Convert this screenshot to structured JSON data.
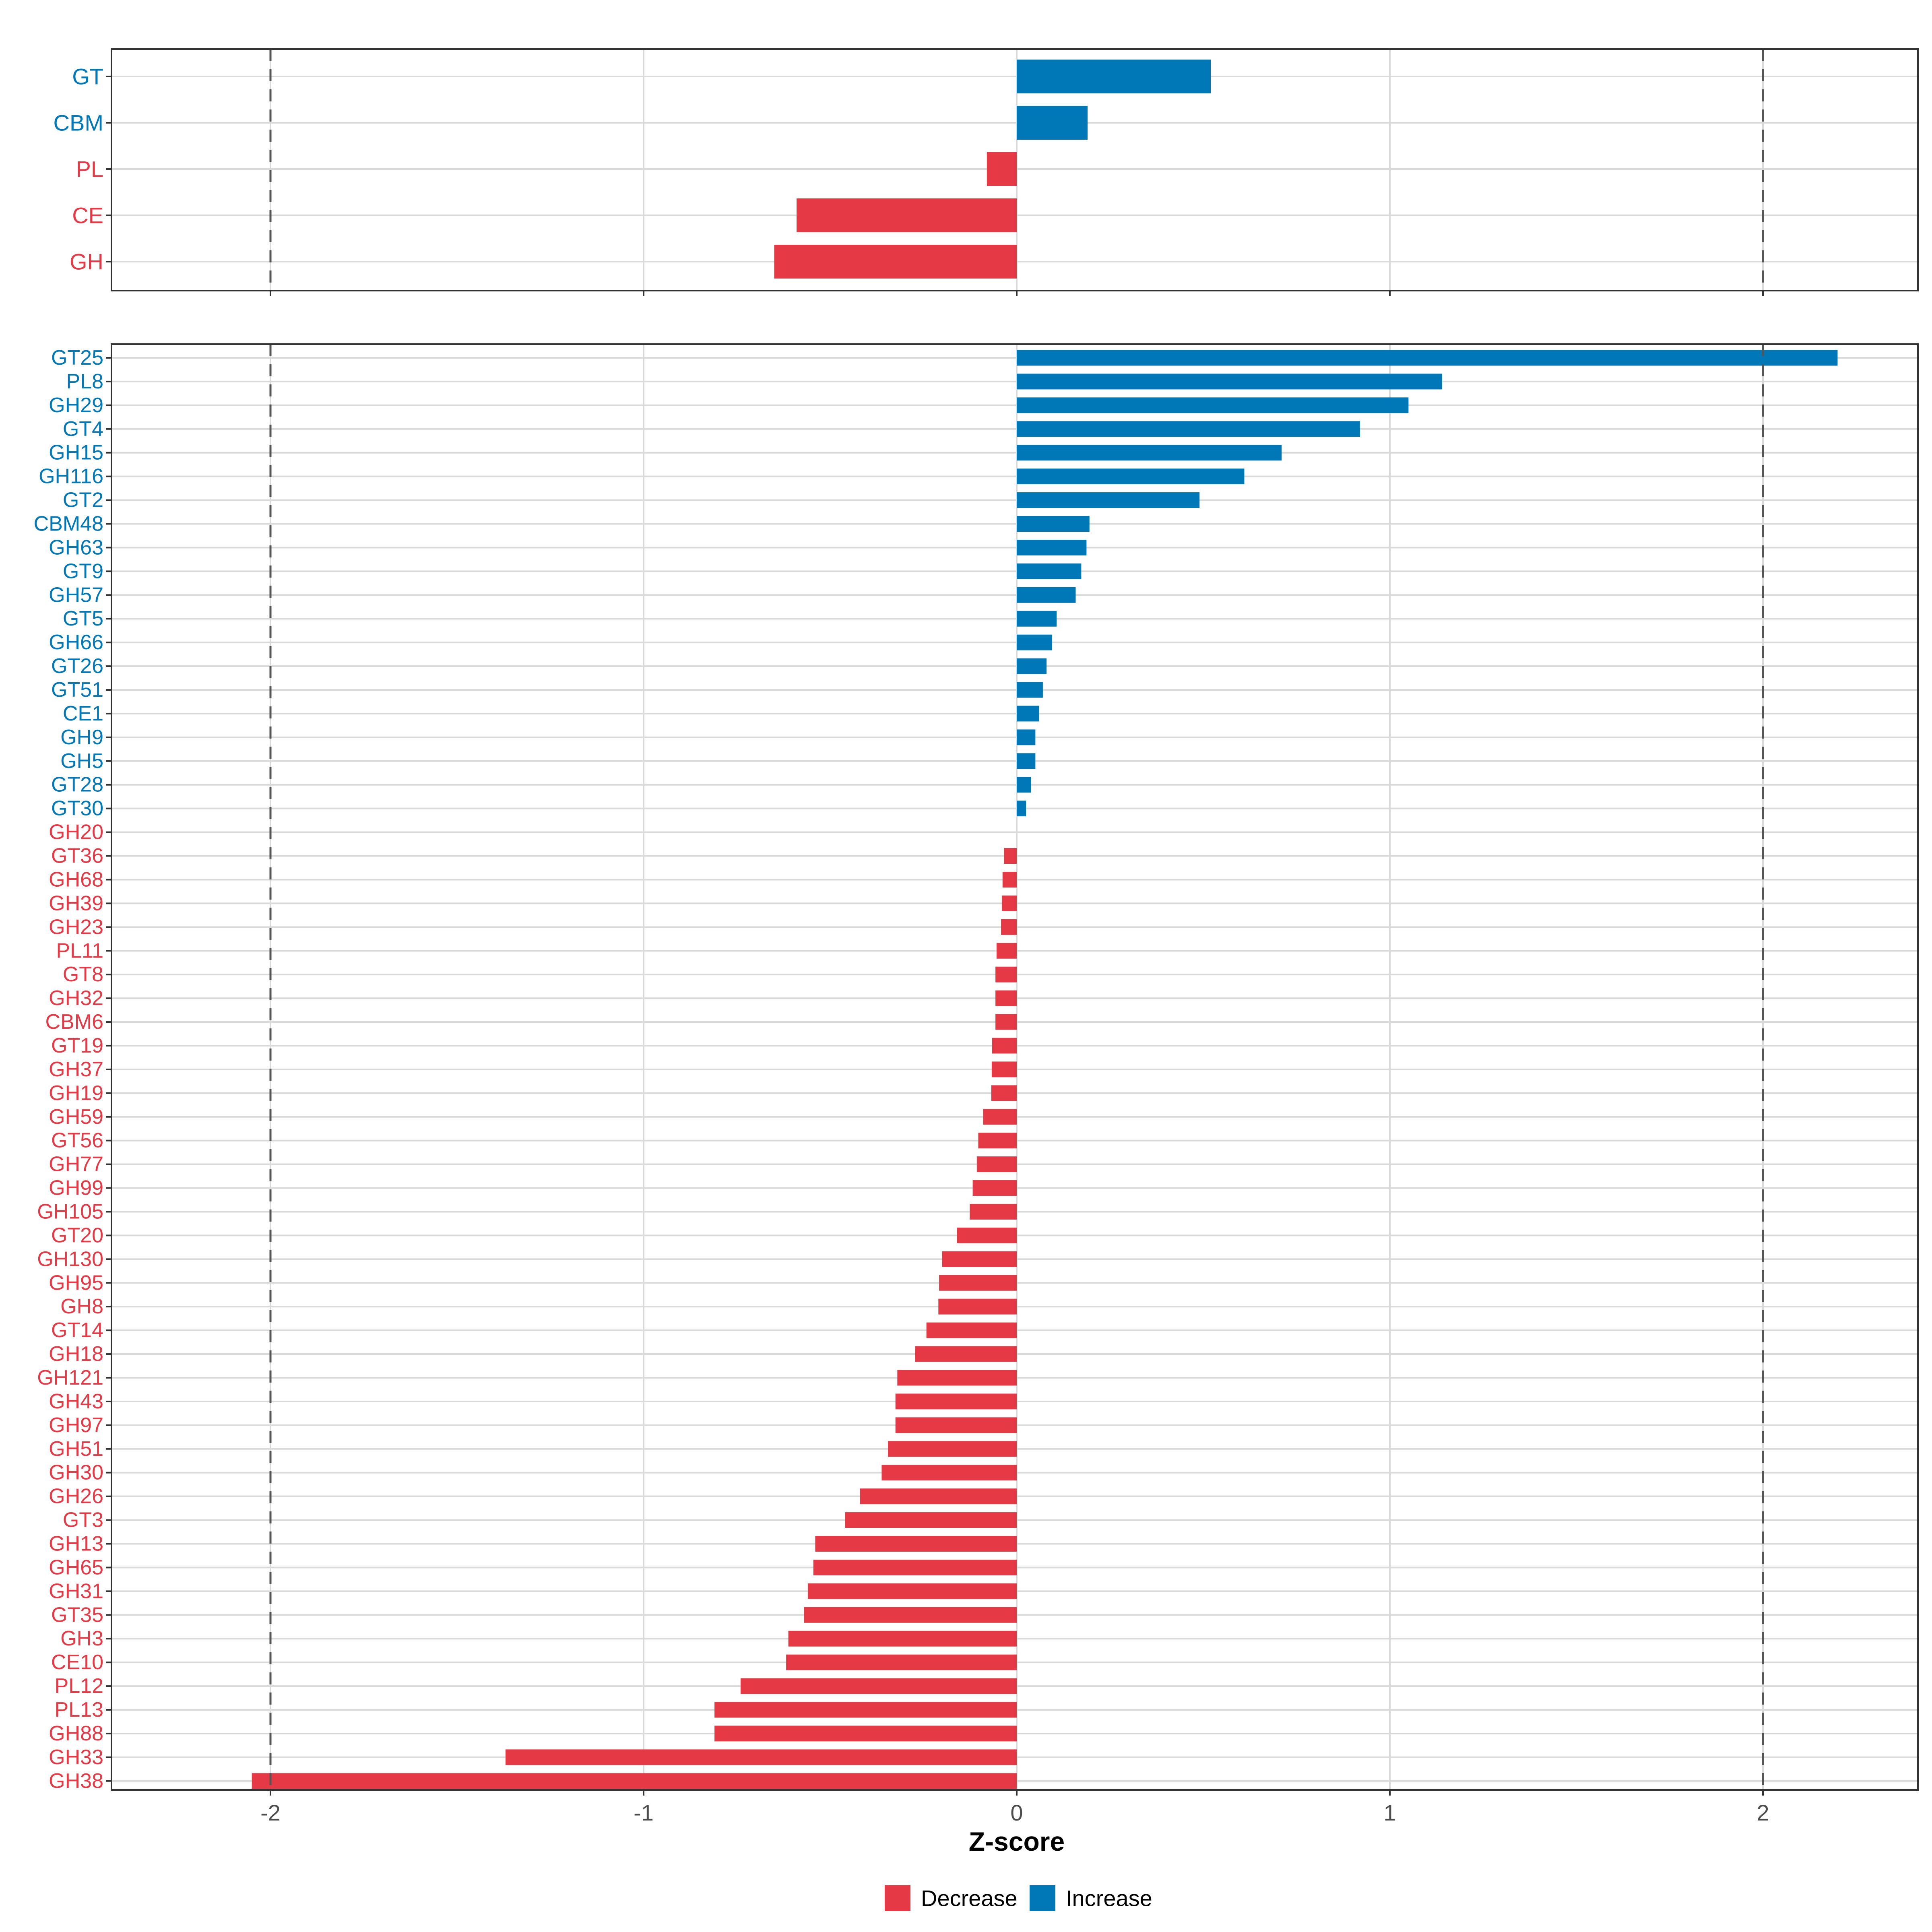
{
  "colors": {
    "decrease": "#E63946",
    "increase": "#0077B6",
    "grid": "#D9D9D9",
    "axis": "#333333",
    "ref_line": "#555555",
    "tick_text": "#4D4D4D"
  },
  "chart_data": [
    {
      "type": "bar",
      "orientation": "horizontal",
      "panel": "top",
      "title": "",
      "categories": [
        "GT",
        "CBM",
        "PL",
        "CE",
        "GH"
      ],
      "values": [
        0.52,
        0.19,
        -0.08,
        -0.59,
        -0.65
      ],
      "xlim": [
        -2.42,
        2.42
      ],
      "xticks": [
        -2,
        -1,
        0,
        1,
        2
      ],
      "reference_lines": [
        -2,
        2
      ],
      "grid": true
    },
    {
      "type": "bar",
      "orientation": "horizontal",
      "panel": "bottom",
      "title": "",
      "categories": [
        "GT25",
        "PL8",
        "GH29",
        "GT4",
        "GH15",
        "GH116",
        "GT2",
        "CBM48",
        "GH63",
        "GT9",
        "GH57",
        "GT5",
        "GH66",
        "GT26",
        "GT51",
        "CE1",
        "GH9",
        "GH5",
        "GT28",
        "GT30",
        "GH20",
        "GT36",
        "GH68",
        "GH39",
        "GH23",
        "PL11",
        "GT8",
        "GH32",
        "CBM6",
        "GT19",
        "GH37",
        "GH19",
        "GH59",
        "GT56",
        "GH77",
        "GH99",
        "GH105",
        "GT20",
        "GH130",
        "GH95",
        "GH8",
        "GT14",
        "GH18",
        "GH121",
        "GH43",
        "GH97",
        "GH51",
        "GH30",
        "GH26",
        "GT3",
        "GH13",
        "GH65",
        "GH31",
        "GT35",
        "GH3",
        "CE10",
        "PL12",
        "PL13",
        "GH88",
        "GH33",
        "GH38"
      ],
      "values": [
        2.2,
        1.14,
        1.05,
        0.92,
        0.71,
        0.61,
        0.49,
        0.195,
        0.187,
        0.173,
        0.158,
        0.107,
        0.095,
        0.08,
        0.07,
        0.06,
        0.05,
        0.05,
        0.038,
        0.025,
        0.0,
        -0.034,
        -0.038,
        -0.04,
        -0.042,
        -0.054,
        -0.057,
        -0.057,
        -0.057,
        -0.066,
        -0.067,
        -0.068,
        -0.09,
        -0.103,
        -0.107,
        -0.118,
        -0.126,
        -0.16,
        -0.2,
        -0.208,
        -0.21,
        -0.242,
        -0.272,
        -0.32,
        -0.325,
        -0.325,
        -0.345,
        -0.362,
        -0.42,
        -0.46,
        -0.54,
        -0.545,
        -0.56,
        -0.57,
        -0.612,
        -0.618,
        -0.74,
        -0.81,
        -0.81,
        -1.37,
        -2.05
      ],
      "xlim": [
        -2.42,
        2.42
      ],
      "xticks": [
        -2,
        -1,
        0,
        1,
        2
      ],
      "xlabel": "Z-score",
      "reference_lines": [
        -2,
        2
      ],
      "grid": true
    }
  ],
  "xtick_labels": [
    "-2",
    "-1",
    "0",
    "1",
    "2"
  ],
  "xlabel": "Z-score",
  "legend": {
    "position": "bottom",
    "items": [
      {
        "label": "Decrease",
        "key": "decrease"
      },
      {
        "label": "Increase",
        "key": "increase"
      }
    ]
  }
}
